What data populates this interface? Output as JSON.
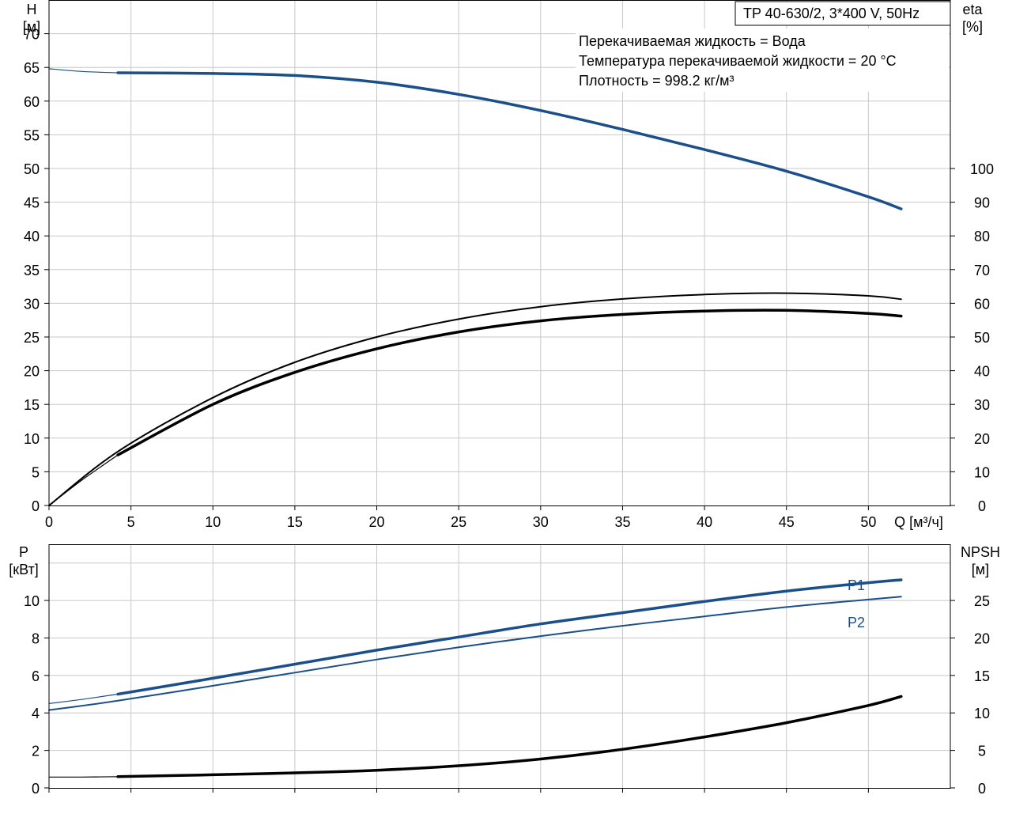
{
  "colors": {
    "blue": "#1b4f8a",
    "black": "#000000",
    "grid": "#c8c8c8",
    "label_blue": "#1b4f8a"
  },
  "chart_data": [
    {
      "type": "line",
      "x_axis_label": "Q [м³/ч]",
      "x_unit": "м³/ч",
      "x_ticks": [
        0,
        5,
        10,
        15,
        20,
        25,
        30,
        35,
        40,
        45,
        50
      ],
      "xlim": [
        0,
        55
      ],
      "left_axis": {
        "label_top": "H",
        "label_unit": "[м]",
        "ylim": [
          0,
          75
        ],
        "ticks": [
          0,
          5,
          10,
          15,
          20,
          25,
          30,
          35,
          40,
          45,
          50,
          55,
          60,
          65,
          70
        ]
      },
      "right_axis": {
        "label_top": "eta",
        "label_unit": "[%]",
        "ylim": [
          0,
          150
        ],
        "ticks": [
          0,
          10,
          20,
          30,
          40,
          50,
          60,
          70,
          80,
          90,
          100
        ]
      },
      "title_box": "TP 40-630/2, 3*400 V, 50Hz",
      "annotations": [
        "Перекачиваемая жидкость = Вода",
        "Температура перекачиваемой жидкости = 20 °C",
        "Плотность = 998.2 кг/м³"
      ],
      "grid": true,
      "series": [
        {
          "axis": "left",
          "color": "blue",
          "thin_x": [
            0,
            4.2
          ],
          "x": [
            4.2,
            10,
            15,
            20,
            25,
            30,
            35,
            40,
            45,
            50,
            52
          ],
          "y": [
            64.2,
            64.1,
            63.8,
            62.8,
            61.0,
            58.6,
            55.8,
            52.8,
            49.6,
            45.8,
            44.0
          ],
          "lead_in": {
            "x": [
              0,
              2,
              4.2
            ],
            "y": [
              64.8,
              64.4,
              64.2
            ]
          }
        },
        {
          "axis": "right",
          "color": "black",
          "width": "thin",
          "x": [
            0,
            4.2,
            10,
            15,
            20,
            25,
            30,
            35,
            40,
            45,
            50,
            52
          ],
          "y": [
            0,
            16,
            32,
            42.5,
            50,
            55.3,
            59,
            61.3,
            62.6,
            63,
            62.2,
            61.2
          ]
        },
        {
          "axis": "right",
          "color": "black",
          "width": "thick",
          "x": [
            4.2,
            10,
            15,
            20,
            25,
            30,
            35,
            40,
            45,
            50,
            52
          ],
          "y": [
            15,
            30,
            39.5,
            46.5,
            51.5,
            54.8,
            56.7,
            57.7,
            57.9,
            57,
            56.2
          ],
          "lead_in": {
            "x": [
              0,
              2,
              4.2
            ],
            "y": [
              0,
              7.5,
              15
            ]
          }
        }
      ]
    },
    {
      "type": "line",
      "x_ticks": [
        0,
        5,
        10,
        15,
        20,
        25,
        30,
        35,
        40,
        45,
        50
      ],
      "xlim": [
        0,
        55
      ],
      "left_axis": {
        "label_top": "P",
        "label_unit": "[кВт]",
        "ylim": [
          0,
          13
        ],
        "ticks": [
          0,
          2,
          4,
          6,
          8,
          10
        ]
      },
      "right_axis": {
        "label_top": "NPSH",
        "label_unit": "[м]",
        "ylim": [
          0,
          32.5
        ],
        "ticks": [
          0,
          5,
          10,
          15,
          20,
          25
        ]
      },
      "grid": true,
      "series": [
        {
          "name": "P1",
          "axis": "left",
          "color": "blue",
          "width": "thick",
          "x": [
            4.2,
            10,
            15,
            20,
            25,
            30,
            35,
            40,
            45,
            50,
            52
          ],
          "y": [
            5.0,
            5.85,
            6.6,
            7.35,
            8.05,
            8.75,
            9.35,
            9.95,
            10.5,
            10.95,
            11.1
          ],
          "lead_in": {
            "x": [
              0,
              2,
              4.2
            ],
            "y": [
              4.5,
              4.72,
              5.0
            ]
          }
        },
        {
          "name": "P2",
          "axis": "left",
          "color": "blue",
          "width": "thin",
          "x": [
            0,
            4.2,
            10,
            15,
            20,
            25,
            30,
            35,
            40,
            45,
            50,
            52
          ],
          "y": [
            4.15,
            4.65,
            5.45,
            6.15,
            6.85,
            7.5,
            8.1,
            8.65,
            9.15,
            9.65,
            10.05,
            10.2
          ]
        },
        {
          "axis": "right",
          "color": "black",
          "width": "thick",
          "x": [
            4.2,
            10,
            15,
            20,
            25,
            30,
            35,
            40,
            45,
            50,
            52
          ],
          "y": [
            1.5,
            1.75,
            2.0,
            2.35,
            2.95,
            3.85,
            5.15,
            6.8,
            8.7,
            11.0,
            12.2
          ],
          "lead_in": {
            "x": [
              0,
              2,
              4.2
            ],
            "y": [
              1.45,
              1.45,
              1.5
            ]
          }
        }
      ]
    }
  ]
}
